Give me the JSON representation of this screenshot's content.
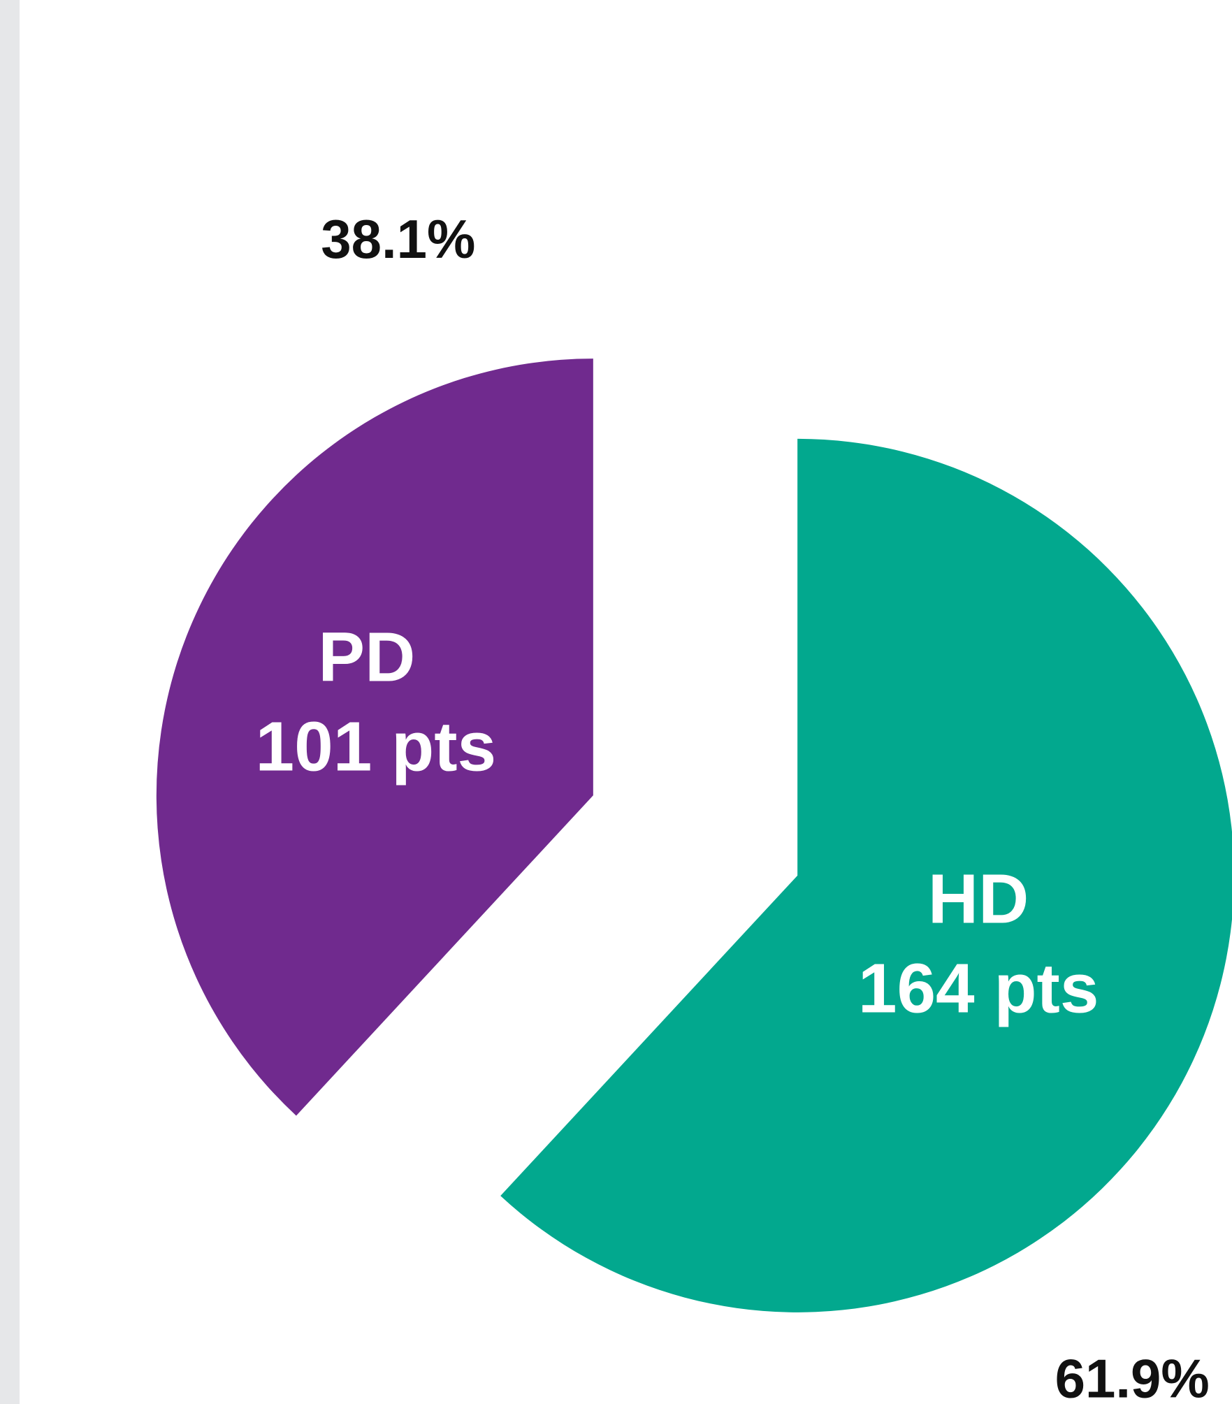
{
  "chart_data": {
    "type": "pie",
    "categories": [
      "PD",
      "HD"
    ],
    "values": [
      38.1,
      61.9
    ],
    "value_labels": [
      "38.1%",
      "61.9%"
    ],
    "counts": [
      101,
      164
    ],
    "count_labels": [
      "101 pts",
      "164 pts"
    ],
    "colors": [
      "#702a8e",
      "#02a88e"
    ]
  }
}
